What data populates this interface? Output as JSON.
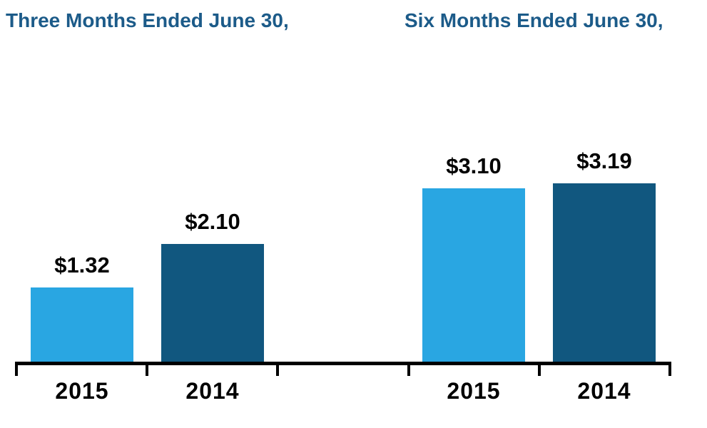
{
  "chart_data": {
    "type": "bar",
    "title": "",
    "xlabel": "",
    "ylabel": "",
    "ylim": [
      0,
      3.5
    ],
    "grid": false,
    "legend": "none",
    "value_prefix": "$",
    "groups": [
      {
        "title": "Three Months Ended June 30,",
        "categories": [
          "2015",
          "2014"
        ],
        "values": [
          1.32,
          2.1
        ],
        "labels": [
          "$1.32",
          "$2.10"
        ]
      },
      {
        "title": "Six Months Ended June 30,",
        "categories": [
          "2015",
          "2014"
        ],
        "values": [
          3.1,
          3.19
        ],
        "labels": [
          "$3.10",
          "$3.19"
        ]
      }
    ],
    "colors": {
      "series_2015": "#29A6E2",
      "series_2014": "#11577F",
      "header_text": "#1C5B89",
      "value_text": "#000000",
      "axis": "#000000"
    }
  }
}
